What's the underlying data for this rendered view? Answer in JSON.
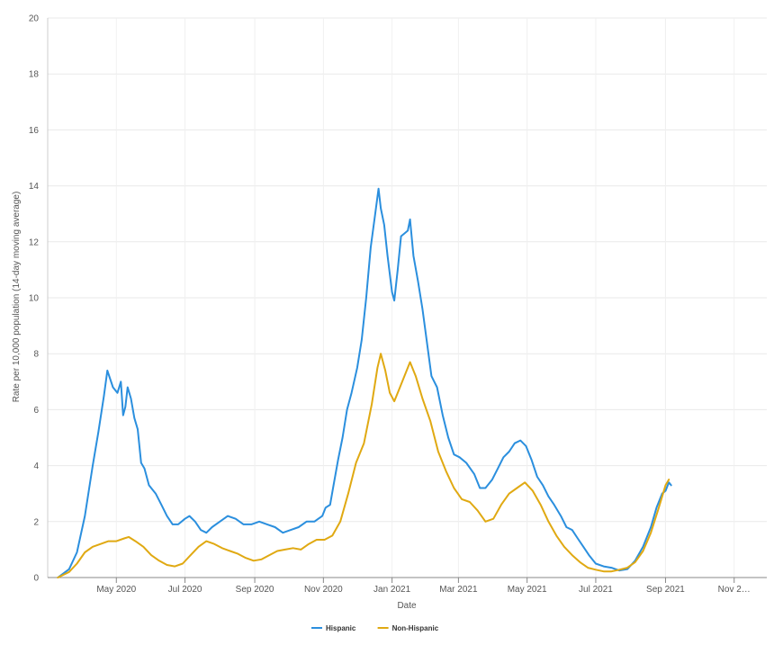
{
  "chart_data": {
    "type": "line",
    "xlabel": "Date",
    "ylabel": "Rate per 10,000 population (14-day moving average)",
    "ylim": [
      0,
      20
    ],
    "yticks": [
      0,
      2,
      4,
      6,
      8,
      10,
      12,
      14,
      16,
      18,
      20
    ],
    "xlim": [
      "2020-03-01",
      "2021-11-30"
    ],
    "xticks": [
      {
        "date": "2020-05-01",
        "label": "May 2020"
      },
      {
        "date": "2020-07-01",
        "label": "Jul 2020"
      },
      {
        "date": "2020-09-01",
        "label": "Sep 2020"
      },
      {
        "date": "2020-11-01",
        "label": "Nov 2020"
      },
      {
        "date": "2021-01-01",
        "label": "Jan 2021"
      },
      {
        "date": "2021-03-01",
        "label": "Mar 2021"
      },
      {
        "date": "2021-05-01",
        "label": "May 2021"
      },
      {
        "date": "2021-07-01",
        "label": "Jul 2021"
      },
      {
        "date": "2021-09-01",
        "label": "Sep 2021"
      },
      {
        "date": "2021-11-01",
        "label": "Nov 2…"
      }
    ],
    "grid": true,
    "legend_position": "bottom-center",
    "series": [
      {
        "name": "Hispanic",
        "color": "#2b8fde",
        "points": [
          [
            "2020-03-10",
            0.0
          ],
          [
            "2020-03-20",
            0.3
          ],
          [
            "2020-03-27",
            0.9
          ],
          [
            "2020-04-03",
            2.2
          ],
          [
            "2020-04-10",
            4.0
          ],
          [
            "2020-04-15",
            5.2
          ],
          [
            "2020-04-20",
            6.5
          ],
          [
            "2020-04-23",
            7.4
          ],
          [
            "2020-04-28",
            6.8
          ],
          [
            "2020-05-02",
            6.6
          ],
          [
            "2020-05-05",
            7.0
          ],
          [
            "2020-05-07",
            5.8
          ],
          [
            "2020-05-09",
            6.1
          ],
          [
            "2020-05-11",
            6.8
          ],
          [
            "2020-05-14",
            6.4
          ],
          [
            "2020-05-17",
            5.7
          ],
          [
            "2020-05-20",
            5.3
          ],
          [
            "2020-05-23",
            4.1
          ],
          [
            "2020-05-26",
            3.9
          ],
          [
            "2020-05-30",
            3.3
          ],
          [
            "2020-06-05",
            3.0
          ],
          [
            "2020-06-10",
            2.6
          ],
          [
            "2020-06-15",
            2.2
          ],
          [
            "2020-06-20",
            1.9
          ],
          [
            "2020-06-25",
            1.9
          ],
          [
            "2020-07-01",
            2.1
          ],
          [
            "2020-07-05",
            2.2
          ],
          [
            "2020-07-10",
            2.0
          ],
          [
            "2020-07-15",
            1.7
          ],
          [
            "2020-07-20",
            1.6
          ],
          [
            "2020-07-25",
            1.8
          ],
          [
            "2020-08-01",
            2.0
          ],
          [
            "2020-08-08",
            2.2
          ],
          [
            "2020-08-15",
            2.1
          ],
          [
            "2020-08-22",
            1.9
          ],
          [
            "2020-08-29",
            1.9
          ],
          [
            "2020-09-05",
            2.0
          ],
          [
            "2020-09-12",
            1.9
          ],
          [
            "2020-09-19",
            1.8
          ],
          [
            "2020-09-26",
            1.6
          ],
          [
            "2020-10-03",
            1.7
          ],
          [
            "2020-10-10",
            1.8
          ],
          [
            "2020-10-17",
            2.0
          ],
          [
            "2020-10-24",
            2.0
          ],
          [
            "2020-10-31",
            2.2
          ],
          [
            "2020-11-03",
            2.5
          ],
          [
            "2020-11-07",
            2.6
          ],
          [
            "2020-11-10",
            3.3
          ],
          [
            "2020-11-14",
            4.2
          ],
          [
            "2020-11-18",
            5.0
          ],
          [
            "2020-11-22",
            6.0
          ],
          [
            "2020-11-26",
            6.6
          ],
          [
            "2020-12-01",
            7.5
          ],
          [
            "2020-12-05",
            8.5
          ],
          [
            "2020-12-09",
            10.0
          ],
          [
            "2020-12-13",
            11.8
          ],
          [
            "2020-12-17",
            13.0
          ],
          [
            "2020-12-20",
            13.9
          ],
          [
            "2020-12-22",
            13.2
          ],
          [
            "2020-12-25",
            12.6
          ],
          [
            "2020-12-28",
            11.5
          ],
          [
            "2021-01-01",
            10.2
          ],
          [
            "2021-01-03",
            9.9
          ],
          [
            "2021-01-06",
            11.0
          ],
          [
            "2021-01-09",
            12.2
          ],
          [
            "2021-01-12",
            12.3
          ],
          [
            "2021-01-15",
            12.4
          ],
          [
            "2021-01-17",
            12.8
          ],
          [
            "2021-01-20",
            11.5
          ],
          [
            "2021-01-24",
            10.6
          ],
          [
            "2021-01-28",
            9.6
          ],
          [
            "2021-02-01",
            8.4
          ],
          [
            "2021-02-05",
            7.2
          ],
          [
            "2021-02-10",
            6.8
          ],
          [
            "2021-02-15",
            5.8
          ],
          [
            "2021-02-20",
            5.0
          ],
          [
            "2021-02-25",
            4.4
          ],
          [
            "2021-03-02",
            4.3
          ],
          [
            "2021-03-08",
            4.1
          ],
          [
            "2021-03-15",
            3.7
          ],
          [
            "2021-03-20",
            3.2
          ],
          [
            "2021-03-25",
            3.2
          ],
          [
            "2021-03-31",
            3.5
          ],
          [
            "2021-04-05",
            3.9
          ],
          [
            "2021-04-10",
            4.3
          ],
          [
            "2021-04-15",
            4.5
          ],
          [
            "2021-04-20",
            4.8
          ],
          [
            "2021-04-25",
            4.9
          ],
          [
            "2021-04-30",
            4.7
          ],
          [
            "2021-05-05",
            4.2
          ],
          [
            "2021-05-10",
            3.6
          ],
          [
            "2021-05-15",
            3.3
          ],
          [
            "2021-05-20",
            2.9
          ],
          [
            "2021-05-25",
            2.6
          ],
          [
            "2021-05-31",
            2.2
          ],
          [
            "2021-06-05",
            1.8
          ],
          [
            "2021-06-10",
            1.7
          ],
          [
            "2021-06-15",
            1.4
          ],
          [
            "2021-06-20",
            1.1
          ],
          [
            "2021-06-25",
            0.8
          ],
          [
            "2021-07-01",
            0.5
          ],
          [
            "2021-07-08",
            0.4
          ],
          [
            "2021-07-15",
            0.35
          ],
          [
            "2021-07-22",
            0.25
          ],
          [
            "2021-07-29",
            0.3
          ],
          [
            "2021-08-05",
            0.6
          ],
          [
            "2021-08-12",
            1.1
          ],
          [
            "2021-08-19",
            1.8
          ],
          [
            "2021-08-24",
            2.5
          ],
          [
            "2021-08-29",
            3.0
          ],
          [
            "2021-09-01",
            3.1
          ],
          [
            "2021-09-04",
            3.4
          ],
          [
            "2021-09-06",
            3.3
          ]
        ]
      },
      {
        "name": "Non-Hispanic",
        "color": "#e0a912",
        "points": [
          [
            "2020-03-10",
            0.0
          ],
          [
            "2020-03-20",
            0.2
          ],
          [
            "2020-03-27",
            0.5
          ],
          [
            "2020-04-03",
            0.9
          ],
          [
            "2020-04-10",
            1.1
          ],
          [
            "2020-04-17",
            1.2
          ],
          [
            "2020-04-24",
            1.3
          ],
          [
            "2020-05-01",
            1.3
          ],
          [
            "2020-05-08",
            1.4
          ],
          [
            "2020-05-12",
            1.45
          ],
          [
            "2020-05-18",
            1.3
          ],
          [
            "2020-05-25",
            1.1
          ],
          [
            "2020-06-01",
            0.8
          ],
          [
            "2020-06-08",
            0.6
          ],
          [
            "2020-06-15",
            0.45
          ],
          [
            "2020-06-22",
            0.4
          ],
          [
            "2020-06-29",
            0.5
          ],
          [
            "2020-07-06",
            0.8
          ],
          [
            "2020-07-13",
            1.1
          ],
          [
            "2020-07-20",
            1.3
          ],
          [
            "2020-07-27",
            1.2
          ],
          [
            "2020-08-03",
            1.05
          ],
          [
            "2020-08-10",
            0.95
          ],
          [
            "2020-08-17",
            0.85
          ],
          [
            "2020-08-24",
            0.7
          ],
          [
            "2020-08-31",
            0.6
          ],
          [
            "2020-09-07",
            0.65
          ],
          [
            "2020-09-14",
            0.8
          ],
          [
            "2020-09-21",
            0.95
          ],
          [
            "2020-09-28",
            1.0
          ],
          [
            "2020-10-05",
            1.05
          ],
          [
            "2020-10-12",
            1.0
          ],
          [
            "2020-10-19",
            1.2
          ],
          [
            "2020-10-26",
            1.35
          ],
          [
            "2020-11-02",
            1.35
          ],
          [
            "2020-11-09",
            1.5
          ],
          [
            "2020-11-16",
            2.0
          ],
          [
            "2020-11-23",
            3.0
          ],
          [
            "2020-11-30",
            4.1
          ],
          [
            "2020-12-07",
            4.8
          ],
          [
            "2020-12-14",
            6.2
          ],
          [
            "2020-12-19",
            7.5
          ],
          [
            "2020-12-22",
            8.0
          ],
          [
            "2020-12-26",
            7.4
          ],
          [
            "2020-12-30",
            6.6
          ],
          [
            "2021-01-03",
            6.3
          ],
          [
            "2021-01-08",
            6.8
          ],
          [
            "2021-01-13",
            7.3
          ],
          [
            "2021-01-17",
            7.7
          ],
          [
            "2021-01-22",
            7.2
          ],
          [
            "2021-01-28",
            6.4
          ],
          [
            "2021-02-04",
            5.6
          ],
          [
            "2021-02-11",
            4.5
          ],
          [
            "2021-02-18",
            3.8
          ],
          [
            "2021-02-25",
            3.2
          ],
          [
            "2021-03-04",
            2.8
          ],
          [
            "2021-03-11",
            2.7
          ],
          [
            "2021-03-18",
            2.4
          ],
          [
            "2021-03-25",
            2.0
          ],
          [
            "2021-04-01",
            2.1
          ],
          [
            "2021-04-08",
            2.6
          ],
          [
            "2021-04-15",
            3.0
          ],
          [
            "2021-04-22",
            3.2
          ],
          [
            "2021-04-29",
            3.4
          ],
          [
            "2021-05-06",
            3.1
          ],
          [
            "2021-05-13",
            2.6
          ],
          [
            "2021-05-20",
            2.0
          ],
          [
            "2021-05-27",
            1.5
          ],
          [
            "2021-06-03",
            1.1
          ],
          [
            "2021-06-10",
            0.8
          ],
          [
            "2021-06-17",
            0.55
          ],
          [
            "2021-06-24",
            0.35
          ],
          [
            "2021-07-01",
            0.28
          ],
          [
            "2021-07-08",
            0.22
          ],
          [
            "2021-07-15",
            0.22
          ],
          [
            "2021-07-22",
            0.28
          ],
          [
            "2021-07-29",
            0.35
          ],
          [
            "2021-08-05",
            0.55
          ],
          [
            "2021-08-12",
            0.95
          ],
          [
            "2021-08-19",
            1.6
          ],
          [
            "2021-08-26",
            2.5
          ],
          [
            "2021-09-01",
            3.3
          ],
          [
            "2021-09-04",
            3.5
          ]
        ]
      }
    ]
  }
}
